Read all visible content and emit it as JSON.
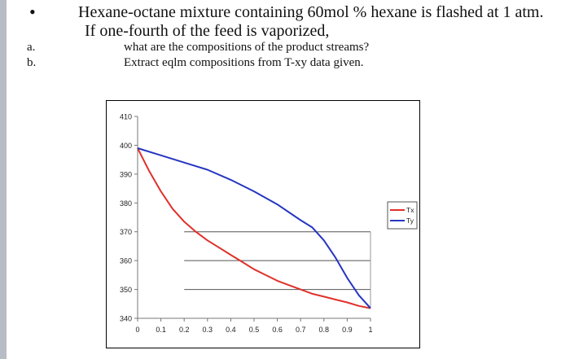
{
  "problem": {
    "bullet": "•",
    "line1": "Hexane-octane mixture containing 60mol % hexane is flashed at 1 atm.",
    "line2": "If one-fourth of the feed is vaporized,",
    "items": [
      {
        "letter": "a.",
        "text": "what are the compositions of the product streams?"
      },
      {
        "letter": "b.",
        "text": "Extract eqlm compositions from T-xy data given."
      }
    ]
  },
  "chart_data": {
    "type": "line",
    "title": "",
    "xlabel": "",
    "ylabel": "",
    "xlim": [
      0,
      1
    ],
    "ylim": [
      340,
      410
    ],
    "x_ticks": [
      "0",
      "0.1",
      "0.2",
      "0.3",
      "0.4",
      "0.5",
      "0.6",
      "0.7",
      "0.8",
      "0.9",
      "1"
    ],
    "y_ticks": [
      "340",
      "350",
      "360",
      "370",
      "380",
      "390",
      "400",
      "410"
    ],
    "grid": false,
    "legend_position": "right",
    "series": [
      {
        "name": "Tx",
        "color": "#e0302a",
        "points": [
          [
            0,
            399
          ],
          [
            0.05,
            391
          ],
          [
            0.1,
            384
          ],
          [
            0.15,
            378
          ],
          [
            0.2,
            373.5
          ],
          [
            0.25,
            370
          ],
          [
            0.3,
            367
          ],
          [
            0.35,
            364.5
          ],
          [
            0.4,
            362
          ],
          [
            0.45,
            359.5
          ],
          [
            0.5,
            357
          ],
          [
            0.55,
            355
          ],
          [
            0.6,
            353
          ],
          [
            0.65,
            351.5
          ],
          [
            0.7,
            350
          ],
          [
            0.75,
            348.5
          ],
          [
            0.8,
            347.5
          ],
          [
            0.85,
            346.5
          ],
          [
            0.9,
            345.5
          ],
          [
            0.95,
            344.3
          ],
          [
            1.0,
            343.5
          ]
        ]
      },
      {
        "name": "Ty",
        "color": "#2636c0",
        "points": [
          [
            0,
            399
          ],
          [
            0.1,
            396.5
          ],
          [
            0.2,
            394
          ],
          [
            0.3,
            391.5
          ],
          [
            0.4,
            388
          ],
          [
            0.5,
            384
          ],
          [
            0.6,
            379.5
          ],
          [
            0.7,
            374
          ],
          [
            0.75,
            371.5
          ],
          [
            0.8,
            367
          ],
          [
            0.85,
            361
          ],
          [
            0.9,
            354
          ],
          [
            0.95,
            348
          ],
          [
            1.0,
            343.5
          ]
        ]
      }
    ],
    "reference_lines": [
      {
        "y": 370,
        "x_from": 0.2,
        "x_to": 1.0
      },
      {
        "y": 360,
        "x_from": 0.2,
        "x_to": 1.0
      },
      {
        "y": 350,
        "x_from": 0.2,
        "x_to": 1.0
      }
    ],
    "vertical_reference": {
      "x": 1.0,
      "y_from": 343.5,
      "y_to": 370
    }
  }
}
